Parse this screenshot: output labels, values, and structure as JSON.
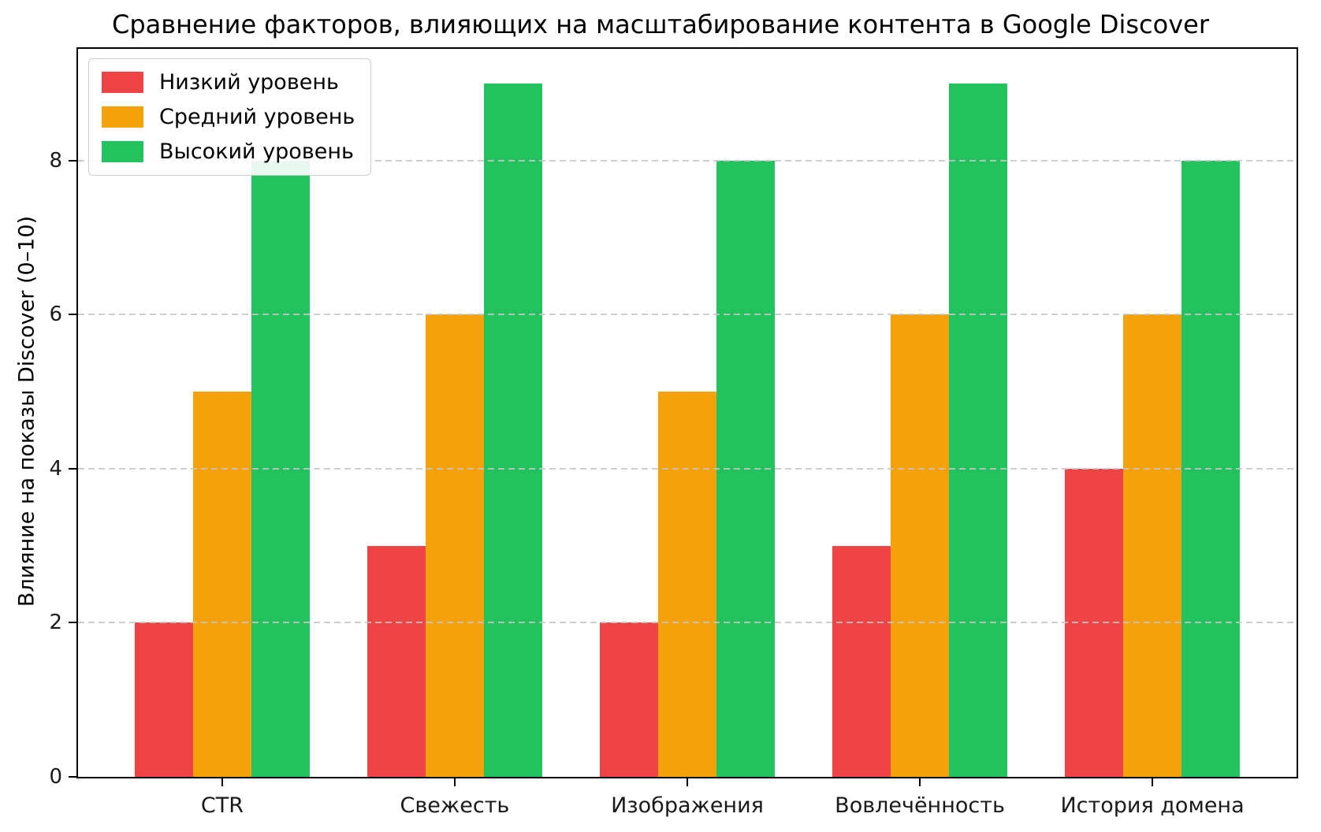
{
  "chart_data": {
    "type": "bar",
    "title": "Сравнение факторов, влияющих на масштабирование контента в Google Discover",
    "ylabel": "Влияние на показы Discover (0–10)",
    "xlabel": "",
    "categories": [
      "CTR",
      "Свежесть",
      "Изображения",
      "Вовлечённость",
      "История домена"
    ],
    "series": [
      {
        "name": "Низкий уровень",
        "color": "#ee4446",
        "values": [
          2,
          3,
          2,
          3,
          4
        ]
      },
      {
        "name": "Средний уровень",
        "color": "#f4a10a",
        "values": [
          5,
          6,
          5,
          6,
          6
        ]
      },
      {
        "name": "Высокий уровень",
        "color": "#22c35e",
        "values": [
          8,
          9,
          8,
          9,
          8
        ]
      }
    ],
    "yticks": [
      0,
      2,
      4,
      6,
      8
    ],
    "ylim": [
      0,
      9.45
    ],
    "grid": "horizontal dashed gray lines at yticks, drawn over bars",
    "legend_position": "upper left"
  }
}
